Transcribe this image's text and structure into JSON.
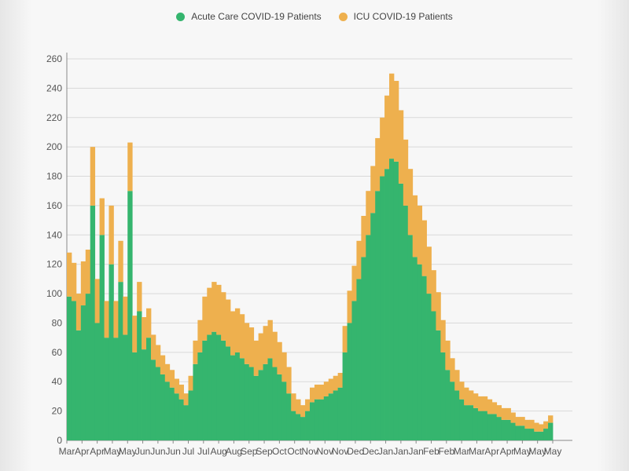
{
  "legend": {
    "acute_label": "Acute Care COVID-19 Patients",
    "icu_label": "ICU COVID-19 Patients",
    "acute_color": "#35b56e",
    "icu_color": "#eeb04e"
  },
  "chart_data": {
    "type": "bar",
    "stacked": true,
    "title": "",
    "xlabel": "",
    "ylabel": "",
    "ylim": [
      0,
      260
    ],
    "yticks": [
      0,
      20,
      40,
      60,
      80,
      100,
      120,
      140,
      160,
      180,
      200,
      220,
      240,
      260
    ],
    "grid": true,
    "legend_position": "top-center",
    "x_tick_labels": [
      "Mar",
      "Apr",
      "Apr",
      "May",
      "May",
      "Jun",
      "Jun",
      "Jun",
      "Jul",
      "Jul",
      "Aug",
      "Aug",
      "Sep",
      "Sep",
      "Oct",
      "Oct",
      "Nov",
      "Nov",
      "Nov",
      "Dec",
      "Dec",
      "Jan",
      "Jan",
      "Jan",
      "Feb",
      "Feb",
      "Mar",
      "Mar",
      "Apr",
      "Apr",
      "May",
      "May",
      "May"
    ],
    "series": [
      {
        "name": "Acute Care COVID-19 Patients",
        "color": "#35b56e",
        "values": [
          98,
          95,
          75,
          92,
          100,
          160,
          80,
          140,
          70,
          120,
          70,
          108,
          72,
          170,
          60,
          88,
          62,
          70,
          55,
          50,
          45,
          40,
          36,
          32,
          28,
          24,
          34,
          52,
          60,
          68,
          72,
          74,
          72,
          68,
          64,
          58,
          60,
          56,
          52,
          50,
          44,
          48,
          52,
          56,
          50,
          45,
          40,
          32,
          20,
          18,
          16,
          20,
          26,
          28,
          28,
          30,
          32,
          34,
          36,
          60,
          80,
          95,
          110,
          125,
          140,
          155,
          170,
          180,
          185,
          192,
          190,
          175,
          160,
          140,
          125,
          120,
          112,
          100,
          88,
          75,
          60,
          48,
          40,
          34,
          28,
          24,
          24,
          22,
          20,
          20,
          18,
          18,
          16,
          14,
          14,
          12,
          10,
          10,
          8,
          8,
          6,
          6,
          8,
          12
        ]
      },
      {
        "name": "ICU COVID-19 Patients",
        "color": "#eeb04e",
        "values": [
          30,
          26,
          25,
          30,
          30,
          40,
          30,
          25,
          25,
          40,
          25,
          28,
          26,
          33,
          25,
          20,
          22,
          20,
          17,
          15,
          13,
          12,
          12,
          10,
          10,
          8,
          10,
          16,
          22,
          30,
          32,
          34,
          34,
          33,
          32,
          30,
          30,
          30,
          28,
          27,
          24,
          25,
          26,
          26,
          24,
          22,
          20,
          18,
          12,
          10,
          8,
          8,
          10,
          10,
          10,
          10,
          10,
          10,
          10,
          18,
          22,
          24,
          26,
          28,
          30,
          32,
          36,
          40,
          50,
          58,
          55,
          50,
          45,
          45,
          42,
          40,
          38,
          32,
          28,
          26,
          22,
          20,
          16,
          14,
          12,
          12,
          10,
          10,
          10,
          10,
          10,
          8,
          8,
          8,
          8,
          7,
          6,
          6,
          6,
          6,
          6,
          5,
          5,
          5
        ]
      }
    ]
  }
}
